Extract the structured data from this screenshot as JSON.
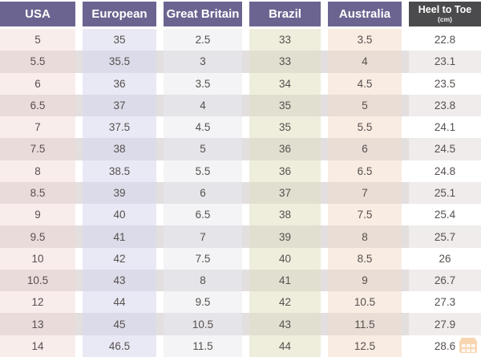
{
  "chart_data": {
    "type": "table",
    "columns": [
      {
        "key": "usa",
        "label": "USA"
      },
      {
        "key": "european",
        "label": "European"
      },
      {
        "key": "great_britain",
        "label": "Great Britain"
      },
      {
        "key": "brazil",
        "label": "Brazil"
      },
      {
        "key": "australia",
        "label": "Australia"
      },
      {
        "key": "heel_to_toe",
        "label": "Heel to Toe",
        "sublabel": "(cm)"
      }
    ],
    "rows": [
      [
        "5",
        "35",
        "2.5",
        "33",
        "3.5",
        "22.8"
      ],
      [
        "5.5",
        "35.5",
        "3",
        "33",
        "4",
        "23.1"
      ],
      [
        "6",
        "36",
        "3.5",
        "34",
        "4.5",
        "23.5"
      ],
      [
        "6.5",
        "37",
        "4",
        "35",
        "5",
        "23.8"
      ],
      [
        "7",
        "37.5",
        "4.5",
        "35",
        "5.5",
        "24.1"
      ],
      [
        "7.5",
        "38",
        "5",
        "36",
        "6",
        "24.5"
      ],
      [
        "8",
        "38.5",
        "5.5",
        "36",
        "6.5",
        "24.8"
      ],
      [
        "8.5",
        "39",
        "6",
        "37",
        "7",
        "25.1"
      ],
      [
        "9",
        "40",
        "6.5",
        "38",
        "7.5",
        "25.4"
      ],
      [
        "9.5",
        "41",
        "7",
        "39",
        "8",
        "25.7"
      ],
      [
        "10",
        "42",
        "7.5",
        "40",
        "8.5",
        "26"
      ],
      [
        "10.5",
        "43",
        "8",
        "41",
        "9",
        "26.7"
      ],
      [
        "12",
        "44",
        "9.5",
        "42",
        "10.5",
        "27.3"
      ],
      [
        "13",
        "45",
        "10.5",
        "43",
        "11.5",
        "27.9"
      ],
      [
        "14",
        "46.5",
        "11.5",
        "44",
        "12.5",
        "28.6"
      ]
    ]
  },
  "colors": {
    "header_purple": "#6c6490",
    "header_dark": "#4b4a4c",
    "header_text": "#ffffff",
    "body_text": "#56504e",
    "stripe_even": "#e3dfdf",
    "col_usa": "#f9edec",
    "col_european": "#e9e9f5",
    "col_great_britain": "#f4f4f6",
    "col_brazil": "#efeedd",
    "col_australia": "#f8ece3",
    "col_heel_to_toe": "#ffffff",
    "watermark_orange": "#ef9a3d"
  },
  "watermark": {
    "icon": "brand-logo"
  }
}
